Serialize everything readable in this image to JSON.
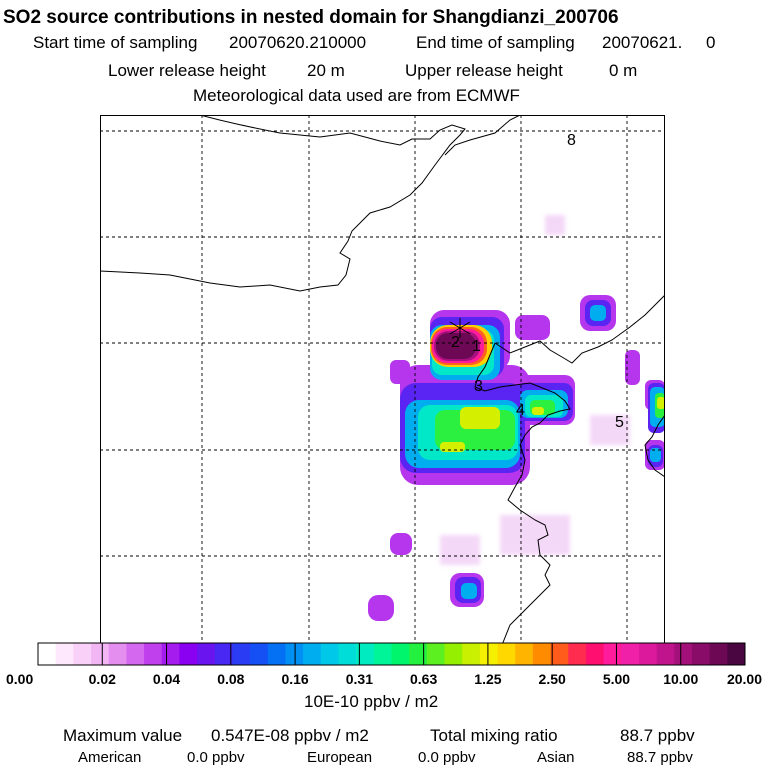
{
  "header": {
    "title": "SO2 source contributions in nested domain for Shangdianzi_200706",
    "start_label": "Start time of sampling",
    "start_value": "20070620.210000",
    "end_label": "End time of sampling",
    "end_value": "20070621.     0",
    "lower_label": "Lower release height",
    "lower_value": "20 m",
    "upper_label": "Upper release height",
    "upper_value": "0 m",
    "met_text": "Meteorological data used are from ECMWF"
  },
  "map": {
    "source_labels": [
      "1",
      "2",
      "3",
      "4",
      "5",
      "8"
    ],
    "station_marker": "receptor-star"
  },
  "colorbar": {
    "ticks": [
      "0.00",
      "0.02",
      "0.04",
      "0.08",
      "0.16",
      "0.31",
      "0.63",
      "1.25",
      "2.50",
      "5.00",
      "10.00",
      "20.00"
    ],
    "colors": [
      "#ffffff",
      "#fde8fd",
      "#f8d0f8",
      "#f2b6f5",
      "#e48ef0",
      "#d468ee",
      "#c040ee",
      "#a41cee",
      "#8a00f0",
      "#6a14f0",
      "#4828f2",
      "#2a3cf4",
      "#1450f4",
      "#0470f4",
      "#0090f4",
      "#00aef0",
      "#00c8e8",
      "#00dcd8",
      "#00ecc0",
      "#00f498",
      "#00f46c",
      "#24f040",
      "#5cf020",
      "#94f000",
      "#c8f000",
      "#f4f000",
      "#ffd800",
      "#ffb400",
      "#ff8c00",
      "#ff5c1c",
      "#ff2c50",
      "#ff1070",
      "#ff1c9c",
      "#f020a8",
      "#dc189c",
      "#c0148c",
      "#a4107a",
      "#880c68",
      "#6c0854",
      "#4a0640"
    ],
    "unit": "10E-10 ppbv / m2"
  },
  "footer": {
    "max_label": "Maximum value",
    "max_value": "0.547E-08 ppbv / m2",
    "total_label": "Total mixing ratio",
    "total_value": "88.7 ppbv",
    "regions": [
      {
        "name": "American",
        "value": "0.0 ppbv"
      },
      {
        "name": "European",
        "value": "0.0 ppbv"
      },
      {
        "name": "Asian",
        "value": "88.7 ppbv"
      }
    ]
  }
}
